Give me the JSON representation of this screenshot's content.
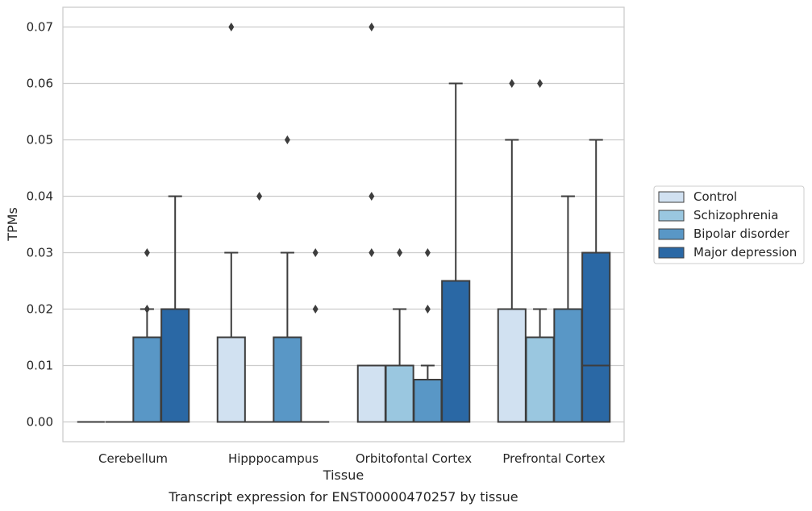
{
  "chart_data": {
    "type": "boxplot",
    "caption": "Transcript expression for ENST00000470257 by tissue",
    "xlabel": "Tissue",
    "ylabel": "TPMs",
    "ylim": [
      -0.0035,
      0.0735
    ],
    "yticks": [
      "0.00",
      "0.01",
      "0.02",
      "0.03",
      "0.04",
      "0.05",
      "0.06",
      "0.07"
    ],
    "grid": "horizontal",
    "legend_placement": "right",
    "categories": [
      "Cerebellum",
      "Hipppocampus",
      "Orbitofontal Cortex",
      "Prefrontal Cortex"
    ],
    "series": [
      {
        "name": "Control",
        "color": "#d1e1f1",
        "boxes": [
          {
            "q1": 0,
            "median": 0,
            "q3": 0,
            "whisker_low": 0,
            "whisker_high": 0,
            "outliers": []
          },
          {
            "q1": 0,
            "median": 0,
            "q3": 0.015,
            "whisker_low": 0,
            "whisker_high": 0.03,
            "outliers": [
              0.07
            ]
          },
          {
            "q1": 0,
            "median": 0,
            "q3": 0.01,
            "whisker_low": 0,
            "whisker_high": 0.01,
            "outliers": [
              0.07,
              0.04,
              0.03
            ]
          },
          {
            "q1": 0,
            "median": 0,
            "q3": 0.02,
            "whisker_low": 0,
            "whisker_high": 0.05,
            "outliers": [
              0.06
            ]
          }
        ]
      },
      {
        "name": "Schizophrenia",
        "color": "#9ac7e0",
        "boxes": [
          {
            "q1": 0,
            "median": 0,
            "q3": 0,
            "whisker_low": 0,
            "whisker_high": 0,
            "outliers": []
          },
          {
            "q1": 0,
            "median": 0,
            "q3": 0,
            "whisker_low": 0,
            "whisker_high": 0,
            "outliers": [
              0.04
            ]
          },
          {
            "q1": 0,
            "median": 0,
            "q3": 0.01,
            "whisker_low": 0,
            "whisker_high": 0.02,
            "outliers": [
              0.03
            ]
          },
          {
            "q1": 0,
            "median": 0,
            "q3": 0.015,
            "whisker_low": 0,
            "whisker_high": 0.02,
            "outliers": [
              0.06
            ]
          }
        ]
      },
      {
        "name": "Bipolar disorder",
        "color": "#5997c6",
        "boxes": [
          {
            "q1": 0,
            "median": 0,
            "q3": 0.015,
            "whisker_low": 0,
            "whisker_high": 0.02,
            "outliers": [
              0.03,
              0.02
            ]
          },
          {
            "q1": 0,
            "median": 0,
            "q3": 0.015,
            "whisker_low": 0,
            "whisker_high": 0.03,
            "outliers": [
              0.05
            ]
          },
          {
            "q1": 0,
            "median": 0,
            "q3": 0.0075,
            "whisker_low": 0,
            "whisker_high": 0.01,
            "outliers": [
              0.03,
              0.02
            ]
          },
          {
            "q1": 0,
            "median": 0,
            "q3": 0.02,
            "whisker_low": 0,
            "whisker_high": 0.04,
            "outliers": []
          }
        ]
      },
      {
        "name": "Major depression",
        "color": "#2a68a5",
        "boxes": [
          {
            "q1": 0,
            "median": 0,
            "q3": 0.02,
            "whisker_low": 0,
            "whisker_high": 0.04,
            "outliers": []
          },
          {
            "q1": 0,
            "median": 0,
            "q3": 0,
            "whisker_low": 0,
            "whisker_high": 0,
            "outliers": [
              0.03,
              0.02
            ]
          },
          {
            "q1": 0,
            "median": 0,
            "q3": 0.025,
            "whisker_low": 0,
            "whisker_high": 0.06,
            "outliers": []
          },
          {
            "q1": 0,
            "median": 0.01,
            "q3": 0.03,
            "whisker_low": 0,
            "whisker_high": 0.05,
            "outliers": []
          }
        ]
      }
    ]
  }
}
